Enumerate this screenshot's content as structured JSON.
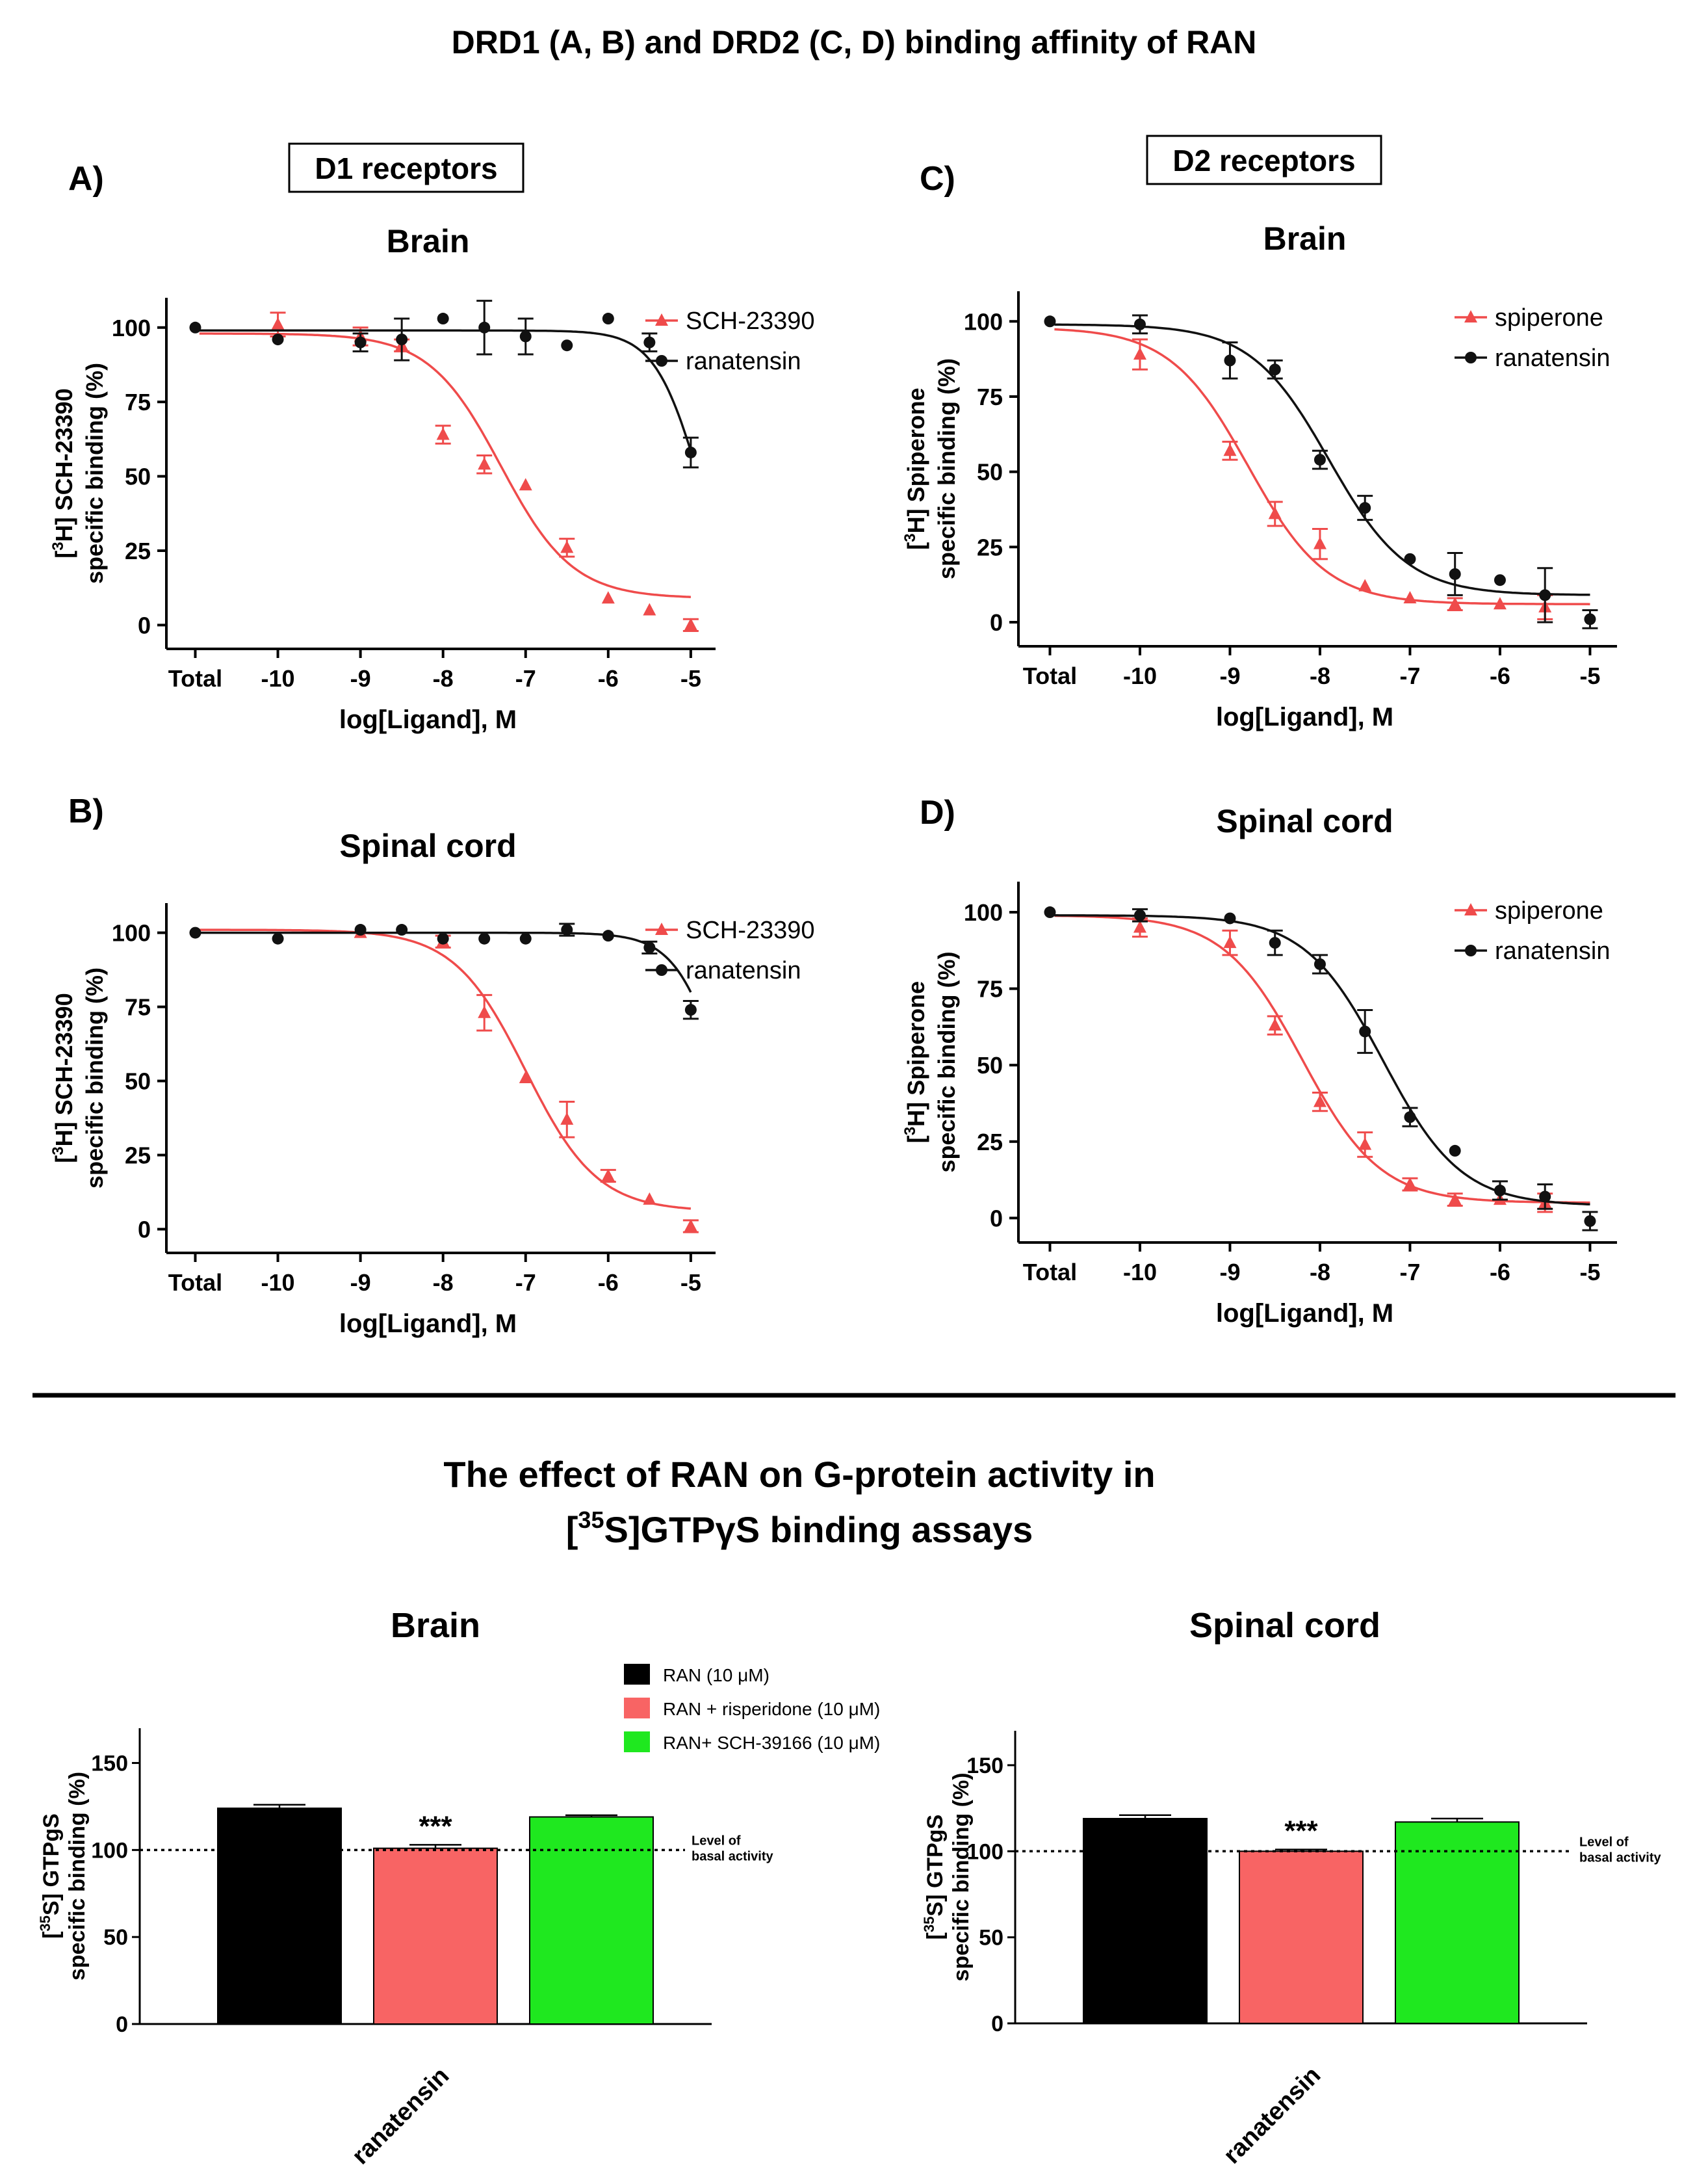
{
  "figure_title": "DRD1 (A, B) and DRD2 (C, D) binding affinity of RAN",
  "section2_title_line1": "The effect of RAN on G-protein activity in",
  "section2_title_line2_sup": "35",
  "section2_title_line2_rest": "S]GTPγS binding assays",
  "colors": {
    "ligand": "#ef4b4b",
    "ran": "#111111",
    "bar_black": "#000000",
    "bar_red": "#f86464",
    "bar_green": "#1fe81f"
  },
  "chart_data": [
    {
      "id": "A",
      "panel_label": "A)",
      "receptor_label": "D1 receptors",
      "title": "Brain",
      "type": "line",
      "xlabel": "log[Ligand], M",
      "ylabel_line1_pre": "[",
      "ylabel_line1_sup": "3",
      "ylabel_line1_post": "H] SCH-23390",
      "ylabel_line2": "specific binding (%)",
      "xticks": [
        {
          "v": -11,
          "label": "Total"
        },
        {
          "v": -10,
          "label": "-10"
        },
        {
          "v": -9,
          "label": "-9"
        },
        {
          "v": -8,
          "label": "-8"
        },
        {
          "v": -7,
          "label": "-7"
        },
        {
          "v": -6,
          "label": "-6"
        },
        {
          "v": -5,
          "label": "-5"
        }
      ],
      "yticks": [
        "0",
        "25",
        "50",
        "75",
        "100"
      ],
      "xlim": [
        -11.35,
        -4.7
      ],
      "ylim": [
        -8,
        110
      ],
      "series": [
        {
          "name": "SCH-23390",
          "marker": "triangle",
          "color": "#ef4b4b",
          "points": [
            [
              -10,
              101,
              4
            ],
            [
              -9,
              97,
              3
            ],
            [
              -8.5,
              94,
              2
            ],
            [
              -8,
              64,
              3
            ],
            [
              -7.5,
              54,
              3
            ],
            [
              -7,
              47,
              0
            ],
            [
              -6.5,
              26,
              3
            ],
            [
              -6,
              9,
              0
            ],
            [
              -5.5,
              5,
              0
            ],
            [
              -5,
              0,
              2
            ]
          ],
          "fit": {
            "top": 98,
            "bottom": 9,
            "logec50": -7.3,
            "hill": 1.0
          }
        },
        {
          "name": "ranatensin",
          "marker": "circle",
          "color": "#111111",
          "points": [
            [
              -11,
              100,
              0
            ],
            [
              -10,
              96,
              0
            ],
            [
              -9,
              95,
              3
            ],
            [
              -8.5,
              96,
              7
            ],
            [
              -8,
              103,
              0
            ],
            [
              -7.5,
              100,
              9
            ],
            [
              -7,
              97,
              6
            ],
            [
              -6.5,
              94,
              0
            ],
            [
              -6,
              103,
              0
            ],
            [
              -5.5,
              95,
              3
            ],
            [
              -5,
              58,
              5
            ]
          ],
          "fit": {
            "top": 99,
            "bottom": 0,
            "logec50": -4.9,
            "hill": 1.6
          }
        }
      ]
    },
    {
      "id": "B",
      "panel_label": "B)",
      "receptor_label": "",
      "title": "Spinal cord",
      "type": "line",
      "xlabel": "log[Ligand], M",
      "ylabel_line1_pre": "[",
      "ylabel_line1_sup": "3",
      "ylabel_line1_post": "H] SCH-23390",
      "ylabel_line2": "specific binding (%)",
      "xticks": [
        {
          "v": -11,
          "label": "Total"
        },
        {
          "v": -10,
          "label": "-10"
        },
        {
          "v": -9,
          "label": "-9"
        },
        {
          "v": -8,
          "label": "-8"
        },
        {
          "v": -7,
          "label": "-7"
        },
        {
          "v": -6,
          "label": "-6"
        },
        {
          "v": -5,
          "label": "-5"
        }
      ],
      "yticks": [
        "0",
        "25",
        "50",
        "75",
        "100"
      ],
      "xlim": [
        -11.35,
        -4.7
      ],
      "ylim": [
        -8,
        110
      ],
      "series": [
        {
          "name": "SCH-23390",
          "marker": "triangle",
          "color": "#ef4b4b",
          "points": [
            [
              -9,
              100,
              0
            ],
            [
              -8,
              97,
              2
            ],
            [
              -7.5,
              73,
              6
            ],
            [
              -7,
              51,
              0
            ],
            [
              -6.5,
              37,
              6
            ],
            [
              -6,
              18,
              2
            ],
            [
              -5.5,
              10,
              0
            ],
            [
              -5,
              1,
              2
            ]
          ],
          "fit": {
            "top": 101,
            "bottom": 6,
            "logec50": -7.0,
            "hill": 1.0
          }
        },
        {
          "name": "ranatensin",
          "marker": "circle",
          "color": "#111111",
          "points": [
            [
              -11,
              100,
              0
            ],
            [
              -10,
              98,
              0
            ],
            [
              -9,
              101,
              0
            ],
            [
              -8.5,
              101,
              0
            ],
            [
              -8,
              98,
              0
            ],
            [
              -7.5,
              98,
              0
            ],
            [
              -7,
              98,
              0
            ],
            [
              -6.5,
              101,
              2
            ],
            [
              -6,
              99,
              0
            ],
            [
              -5.5,
              95,
              2
            ],
            [
              -5,
              74,
              3
            ]
          ],
          "fit": {
            "top": 100,
            "bottom": 0,
            "logec50": -4.6,
            "hill": 1.5
          }
        }
      ]
    },
    {
      "id": "C",
      "panel_label": "C)",
      "receptor_label": "D2 receptors",
      "title": "Brain",
      "type": "line",
      "xlabel": "log[Ligand], M",
      "ylabel_line1_pre": "[",
      "ylabel_line1_sup": "3",
      "ylabel_line1_post": "H] Spiperone",
      "ylabel_line2": "specific binding (%)",
      "xticks": [
        {
          "v": -11,
          "label": "Total"
        },
        {
          "v": -10,
          "label": "-10"
        },
        {
          "v": -9,
          "label": "-9"
        },
        {
          "v": -8,
          "label": "-8"
        },
        {
          "v": -7,
          "label": "-7"
        },
        {
          "v": -6,
          "label": "-6"
        },
        {
          "v": -5,
          "label": "-5"
        }
      ],
      "yticks": [
        "0",
        "25",
        "50",
        "75",
        "100"
      ],
      "xlim": [
        -11.35,
        -4.7
      ],
      "ylim": [
        -8,
        110
      ],
      "series": [
        {
          "name": "spiperone",
          "marker": "triangle",
          "color": "#ef4b4b",
          "points": [
            [
              -10,
              89,
              5
            ],
            [
              -9,
              57,
              3
            ],
            [
              -8.5,
              36,
              4
            ],
            [
              -8,
              26,
              5
            ],
            [
              -7.5,
              12,
              0
            ],
            [
              -7,
              8,
              0
            ],
            [
              -6.5,
              6,
              2
            ],
            [
              -6,
              6,
              0
            ],
            [
              -5.5,
              5,
              4
            ]
          ],
          "fit": {
            "top": 98,
            "bottom": 6,
            "logec50": -8.8,
            "hill": 1.0
          }
        },
        {
          "name": "ranatensin",
          "marker": "circle",
          "color": "#111111",
          "points": [
            [
              -11,
              100,
              0
            ],
            [
              -10,
              99,
              3
            ],
            [
              -9,
              87,
              6
            ],
            [
              -8.5,
              84,
              3
            ],
            [
              -8,
              54,
              3
            ],
            [
              -7.5,
              38,
              4
            ],
            [
              -7,
              21,
              0
            ],
            [
              -6.5,
              16,
              7
            ],
            [
              -6,
              14,
              0
            ],
            [
              -5.5,
              9,
              9
            ],
            [
              -5,
              1,
              3
            ]
          ],
          "fit": {
            "top": 99,
            "bottom": 9,
            "logec50": -7.9,
            "hill": 1.0
          }
        }
      ]
    },
    {
      "id": "D",
      "panel_label": "D)",
      "receptor_label": "",
      "title": "Spinal cord",
      "type": "line",
      "xlabel": "log[Ligand], M",
      "ylabel_line1_pre": "[",
      "ylabel_line1_sup": "3",
      "ylabel_line1_post": "H] Spiperone",
      "ylabel_line2": "specific binding (%)",
      "xticks": [
        {
          "v": -11,
          "label": "Total"
        },
        {
          "v": -10,
          "label": "-10"
        },
        {
          "v": -9,
          "label": "-9"
        },
        {
          "v": -8,
          "label": "-8"
        },
        {
          "v": -7,
          "label": "-7"
        },
        {
          "v": -6,
          "label": "-6"
        },
        {
          "v": -5,
          "label": "-5"
        }
      ],
      "yticks": [
        "0",
        "25",
        "50",
        "75",
        "100"
      ],
      "xlim": [
        -11.35,
        -4.7
      ],
      "ylim": [
        -8,
        110
      ],
      "series": [
        {
          "name": "spiperone",
          "marker": "triangle",
          "color": "#ef4b4b",
          "points": [
            [
              -10,
              95,
              3
            ],
            [
              -9,
              90,
              4
            ],
            [
              -8.5,
              63,
              3
            ],
            [
              -8,
              38,
              3
            ],
            [
              -7.5,
              24,
              4
            ],
            [
              -7,
              11,
              2
            ],
            [
              -6.5,
              6,
              2
            ],
            [
              -6,
              6,
              0
            ],
            [
              -5.5,
              5,
              3
            ]
          ],
          "fit": {
            "top": 99,
            "bottom": 5,
            "logec50": -8.2,
            "hill": 1.0
          }
        },
        {
          "name": "ranatensin",
          "marker": "circle",
          "color": "#111111",
          "points": [
            [
              -11,
              100,
              0
            ],
            [
              -10,
              99,
              2
            ],
            [
              -9,
              98,
              0
            ],
            [
              -8.5,
              90,
              4
            ],
            [
              -8,
              83,
              3
            ],
            [
              -7.5,
              61,
              7
            ],
            [
              -7,
              33,
              3
            ],
            [
              -6.5,
              22,
              0
            ],
            [
              -6,
              9,
              3
            ],
            [
              -5.5,
              7,
              4
            ],
            [
              -5,
              -1,
              3
            ]
          ],
          "fit": {
            "top": 99,
            "bottom": 4,
            "logec50": -7.3,
            "hill": 1.0
          }
        }
      ]
    },
    {
      "id": "E",
      "title": "Brain",
      "type": "bar",
      "ylabel_line1_pre": "[",
      "ylabel_line1_sup": "35",
      "ylabel_line1_post": "S] GTPgS",
      "ylabel_line2": "specific binding (%)",
      "yticks": [
        "0",
        "50",
        "100",
        "150"
      ],
      "ylim": [
        0,
        170
      ],
      "category": "ranatensin",
      "bars": [
        {
          "name": "RAN (10 μM)",
          "value": 124,
          "error": 2,
          "color": "#000000",
          "annotation": ""
        },
        {
          "name": "RAN + risperidone (10 μM)",
          "value": 101,
          "error": 2,
          "color": "#f86464",
          "annotation": "***"
        },
        {
          "name": "RAN+ SCH-39166 (10 μM)",
          "value": 119,
          "error": 1,
          "color": "#1fe81f",
          "annotation": ""
        }
      ],
      "reference_line": 100,
      "reference_label_line1": "Level of",
      "reference_label_line2": "basal activity"
    },
    {
      "id": "F",
      "title": "Spinal cord",
      "type": "bar",
      "ylabel_line1_pre": "[",
      "ylabel_line1_sup": "35",
      "ylabel_line1_post": "S] GTPgS",
      "ylabel_line2": "specific binding (%)",
      "yticks": [
        "0",
        "50",
        "100",
        "150"
      ],
      "ylim": [
        0,
        170
      ],
      "category": "ranatensin",
      "bars": [
        {
          "name": "RAN (10 μM)",
          "value": 119,
          "error": 2,
          "color": "#000000",
          "annotation": ""
        },
        {
          "name": "RAN + risperidone (10 μM)",
          "value": 100,
          "error": 1,
          "color": "#f86464",
          "annotation": "***"
        },
        {
          "name": "RAN+ SCH-39166 (10 μM)",
          "value": 117,
          "error": 2,
          "color": "#1fe81f",
          "annotation": ""
        }
      ],
      "reference_line": 100,
      "reference_label_line1": "Level of",
      "reference_label_line2": "basal activity"
    }
  ],
  "bar_legend": [
    {
      "label": "RAN (10 μM)",
      "color": "#000000"
    },
    {
      "label": "RAN + risperidone (10 μM)",
      "color": "#f86464"
    },
    {
      "label": "RAN+ SCH-39166 (10 μM)",
      "color": "#1fe81f"
    }
  ]
}
